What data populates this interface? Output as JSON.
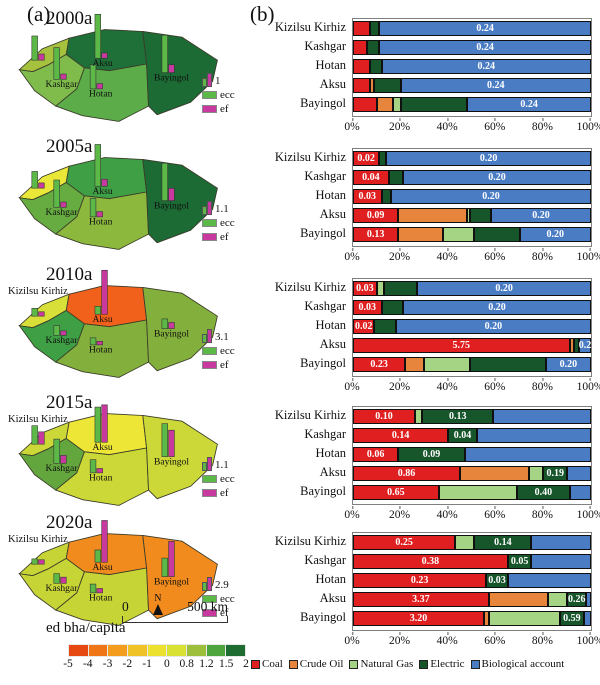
{
  "panel_a_label": "(a)",
  "panel_b_label": "(b)",
  "palette": {
    "coal": "#E02020",
    "crude_oil": "#E8853D",
    "natural_gas": "#A6D485",
    "electric": "#17552B",
    "biological": "#4A7CC4"
  },
  "map_bar_colors": {
    "ecc": "#5CB847",
    "ef": "#C8399F"
  },
  "map_region_labels": {
    "kizilsu": "Kizilsu Kirhiz",
    "kashgar": "Kashgar",
    "hotan": "Hotan",
    "aksu": "Aksu",
    "bayingol": "Bayingol"
  },
  "map_legend": {
    "ecc_label": "ecc",
    "ef_label": "ef"
  },
  "maps": [
    {
      "year": "2000a",
      "scale_label": "1",
      "show_kizilsu_label": false,
      "colors": {
        "kizilsu": "#A6C13D",
        "kashgar": "#7FBC4C",
        "hotan": "#5CAC49",
        "aksu": "#1F6F38",
        "bayingol": "#1C6A34"
      },
      "bars": {
        "kizilsu": [
          0.55,
          0.14
        ],
        "kashgar": [
          0.72,
          0.12
        ],
        "hotan": [
          0.55,
          0.12
        ],
        "aksu": [
          1.0,
          0.12
        ],
        "bayingol": [
          0.85,
          0.18
        ]
      }
    },
    {
      "year": "2005a",
      "scale_label": "1.1",
      "show_kizilsu_label": false,
      "colors": {
        "kizilsu": "#E9E838",
        "kashgar": "#66AC40",
        "hotan": "#8CB83E",
        "aksu": "#3F9F45",
        "bayingol": "#1C6A34"
      },
      "bars": {
        "kizilsu": [
          0.38,
          0.12
        ],
        "kashgar": [
          0.62,
          0.12
        ],
        "hotan": [
          0.42,
          0.12
        ],
        "aksu": [
          0.95,
          0.16
        ],
        "bayingol": [
          0.85,
          0.28
        ]
      }
    },
    {
      "year": "2010a",
      "scale_label": "3.1",
      "show_kizilsu_label": true,
      "colors": {
        "kizilsu": "#D9DF39",
        "kashgar": "#3F9F45",
        "hotan": "#83B03C",
        "aksu": "#F2611B",
        "bayingol": "#83B03C"
      },
      "bars": {
        "kizilsu": [
          0.18,
          0.1
        ],
        "kashgar": [
          0.22,
          0.1
        ],
        "hotan": [
          0.16,
          0.08
        ],
        "aksu": [
          0.18,
          1.0
        ],
        "bayingol": [
          0.22,
          0.14
        ]
      }
    },
    {
      "year": "2015a",
      "scale_label": "1.1",
      "show_kizilsu_label": true,
      "colors": {
        "kizilsu": "#CBD837",
        "kashgar": "#63A63E",
        "hotan": "#CBD837",
        "aksu": "#EDE637",
        "bayingol": "#CBD837"
      },
      "bars": {
        "kizilsu": [
          0.42,
          0.28
        ],
        "kashgar": [
          0.55,
          0.18
        ],
        "hotan": [
          0.3,
          0.1
        ],
        "aksu": [
          0.8,
          0.85
        ],
        "bayingol": [
          0.75,
          0.6
        ]
      }
    },
    {
      "year": "2020a",
      "scale_label": "2.9",
      "show_kizilsu_label": true,
      "colors": {
        "kizilsu": "#C6D436",
        "kashgar": "#C6D436",
        "hotan": "#C6D436",
        "aksu": "#F28B1E",
        "bayingol": "#F28B1E"
      },
      "bars": {
        "kizilsu": [
          0.12,
          0.1
        ],
        "kashgar": [
          0.22,
          0.14
        ],
        "hotan": [
          0.2,
          0.1
        ],
        "aksu": [
          0.28,
          0.95
        ],
        "bayingol": [
          0.42,
          0.8
        ]
      }
    }
  ],
  "map_footer": {
    "unit_label": "ed bha/capita",
    "scale_zero": "0",
    "scale_distance": "500 km",
    "north_label": "N"
  },
  "colorbar": {
    "colors": [
      "#E64A12",
      "#EF7517",
      "#F49C1D",
      "#EFC227",
      "#ECE12E",
      "#D9E133",
      "#9DBF3B",
      "#4EA53E",
      "#1E6C31"
    ],
    "ticks": [
      "-5",
      "-4",
      "-3",
      "-2",
      "-1",
      "0",
      "0.8",
      "1.2",
      "1.5",
      "2"
    ]
  },
  "legend": {
    "items": [
      {
        "key": "coal",
        "label": "Coal"
      },
      {
        "key": "crude_oil",
        "label": "Crude Oil"
      },
      {
        "key": "natural_gas",
        "label": "Natural Gas"
      },
      {
        "key": "electric",
        "label": "Electric"
      },
      {
        "key": "biological",
        "label": "Biological account"
      }
    ]
  },
  "chart_data": [
    {
      "type": "bar",
      "orientation": "horizontal_stacked",
      "period": "2000a",
      "xlim": [
        0,
        100
      ],
      "x_ticks": [
        "0%",
        "20%",
        "40%",
        "60%",
        "80%",
        "100%"
      ],
      "categories": [
        "Kizilsu Kirhiz",
        "Kashgar",
        "Hotan",
        "Aksu",
        "Bayingol"
      ],
      "series": [
        {
          "key": "coal",
          "name": "Coal",
          "pct": [
            7,
            6,
            7,
            7,
            10
          ]
        },
        {
          "key": "crude_oil",
          "name": "Crude Oil",
          "pct": [
            0,
            0,
            0,
            2,
            7
          ]
        },
        {
          "key": "natural_gas",
          "name": "Natural Gas",
          "pct": [
            0,
            0,
            0,
            0,
            3
          ]
        },
        {
          "key": "electric",
          "name": "Electric",
          "pct": [
            4,
            5,
            5,
            11,
            28
          ]
        },
        {
          "key": "biological",
          "name": "Biological account",
          "pct": [
            89,
            89,
            88,
            80,
            52
          ],
          "labels": [
            "0.24",
            "0.24",
            "0.24",
            "0.24",
            "0.24"
          ]
        }
      ]
    },
    {
      "type": "bar",
      "orientation": "horizontal_stacked",
      "period": "2005a",
      "xlim": [
        0,
        100
      ],
      "x_ticks": [
        "0%",
        "20%",
        "40%",
        "60%",
        "80%",
        "100%"
      ],
      "categories": [
        "Kizilsu Kirhiz",
        "Kashgar",
        "Hotan",
        "Aksu",
        "Bayingol"
      ],
      "series": [
        {
          "key": "coal",
          "name": "Coal",
          "pct": [
            11,
            15,
            12,
            19,
            19
          ],
          "labels": [
            "0.02",
            "0.04",
            "0.03",
            "0.09",
            "0.13"
          ]
        },
        {
          "key": "crude_oil",
          "name": "Crude Oil",
          "pct": [
            0,
            0,
            0,
            29,
            19
          ]
        },
        {
          "key": "natural_gas",
          "name": "Natural Gas",
          "pct": [
            0,
            0,
            0,
            1,
            13
          ]
        },
        {
          "key": "electric",
          "name": "Electric",
          "pct": [
            3,
            6,
            4,
            9,
            19
          ]
        },
        {
          "key": "biological",
          "name": "Biological account",
          "pct": [
            86,
            79,
            84,
            42,
            30
          ],
          "labels": [
            "0.20",
            "0.20",
            "0.20",
            "0.20",
            "0.20"
          ]
        }
      ]
    },
    {
      "type": "bar",
      "orientation": "horizontal_stacked",
      "period": "2010a",
      "xlim": [
        0,
        100
      ],
      "x_ticks": [
        "0%",
        "20%",
        "40%",
        "60%",
        "80%",
        "100%"
      ],
      "categories": [
        "Kizilsu Kirhiz",
        "Kashgar",
        "Hotan",
        "Aksu",
        "Bayingol"
      ],
      "series": [
        {
          "key": "coal",
          "name": "Coal",
          "pct": [
            10,
            12,
            9,
            91,
            22
          ],
          "labels": [
            "0.03",
            "0.03",
            "0.02",
            "5.75",
            "0.23"
          ]
        },
        {
          "key": "crude_oil",
          "name": "Crude Oil",
          "pct": [
            0,
            0,
            0,
            2,
            8
          ]
        },
        {
          "key": "natural_gas",
          "name": "Natural Gas",
          "pct": [
            3,
            0,
            0,
            0,
            19
          ]
        },
        {
          "key": "electric",
          "name": "Electric",
          "pct": [
            14,
            9,
            9,
            2,
            32
          ]
        },
        {
          "key": "biological",
          "name": "Biological account",
          "pct": [
            73,
            79,
            82,
            5,
            19
          ],
          "labels": [
            "0.20",
            "0.20",
            "0.20",
            "0.2",
            "0.20"
          ]
        }
      ]
    },
    {
      "type": "bar",
      "orientation": "horizontal_stacked",
      "period": "2015a",
      "xlim": [
        0,
        100
      ],
      "x_ticks": [
        "0%",
        "20%",
        "40%",
        "60%",
        "80%",
        "100%"
      ],
      "categories": [
        "Kizilsu Kirhiz",
        "Kashgar",
        "Hotan",
        "Aksu",
        "Bayingol"
      ],
      "series": [
        {
          "key": "coal",
          "name": "Coal",
          "pct": [
            26,
            40,
            19,
            45,
            36
          ],
          "labels": [
            "0.10",
            "0.14",
            "0.06",
            "0.86",
            "0.65"
          ]
        },
        {
          "key": "crude_oil",
          "name": "Crude Oil",
          "pct": [
            0,
            0,
            0,
            29,
            0
          ]
        },
        {
          "key": "natural_gas",
          "name": "Natural Gas",
          "pct": [
            3,
            0,
            0,
            6,
            33
          ]
        },
        {
          "key": "electric",
          "name": "Electric",
          "pct": [
            30,
            12,
            28,
            10,
            22
          ],
          "labels": [
            "0.13",
            "0.04",
            "0.09",
            "0.19",
            "0.40"
          ]
        },
        {
          "key": "biological",
          "name": "Biological account",
          "pct": [
            41,
            48,
            53,
            10,
            9
          ]
        }
      ]
    },
    {
      "type": "bar",
      "orientation": "horizontal_stacked",
      "period": "2020a",
      "xlim": [
        0,
        100
      ],
      "x_ticks": [
        "0%",
        "20%",
        "40%",
        "60%",
        "80%",
        "100%"
      ],
      "categories": [
        "Kizilsu Kirhiz",
        "Kashgar",
        "Hotan",
        "Aksu",
        "Bayingol"
      ],
      "series": [
        {
          "key": "coal",
          "name": "Coal",
          "pct": [
            43,
            65,
            56,
            57,
            55
          ],
          "labels": [
            "0.25",
            "0.38",
            "0.23",
            "3.37",
            "3.20"
          ]
        },
        {
          "key": "crude_oil",
          "name": "Crude Oil",
          "pct": [
            0,
            0,
            0,
            25,
            2
          ]
        },
        {
          "key": "natural_gas",
          "name": "Natural Gas",
          "pct": [
            8,
            0,
            0,
            8,
            30
          ]
        },
        {
          "key": "electric",
          "name": "Electric",
          "pct": [
            24,
            10,
            9,
            8,
            10
          ],
          "labels": [
            "0.14",
            "0.05",
            "0.03",
            "0.26",
            "0.59"
          ]
        },
        {
          "key": "biological",
          "name": "Biological account",
          "pct": [
            25,
            25,
            35,
            2,
            3
          ]
        }
      ]
    }
  ]
}
